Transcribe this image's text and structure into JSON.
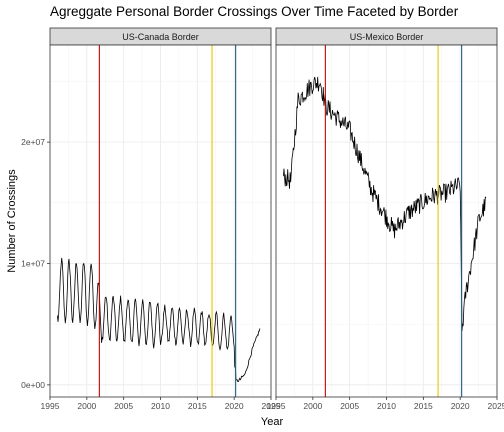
{
  "chart_data": {
    "type": "line",
    "title": "Agreggate Personal Border Crossings Over Time Faceted by Border",
    "xlabel": "Year",
    "ylabel": "Number of Crossings",
    "xlim": [
      1995,
      2025
    ],
    "ylim": [
      -1000000,
      28000000
    ],
    "x_ticks": [
      1995,
      2000,
      2005,
      2010,
      2015,
      2020,
      2025
    ],
    "x_tick_labels": [
      "1995",
      "2000",
      "2005",
      "2010",
      "2015",
      "2020",
      "2025"
    ],
    "y_ticks": [
      0,
      10000000,
      20000000
    ],
    "y_tick_labels": [
      "0e+00",
      "1e+07",
      "2e+07"
    ],
    "grid": true,
    "reference_lines": [
      {
        "x": 2001.7,
        "color": "#cc0000"
      },
      {
        "x": 2017.0,
        "color": "#e6c700"
      },
      {
        "x": 2020.2,
        "color": "#1b5f85"
      }
    ],
    "facets": [
      {
        "label": "US-Canada Border",
        "series": [
          {
            "x": [
              1996.0,
              2001.0,
              2001.75,
              2005.0,
              2010.0,
              2015.0,
              2020.0,
              2020.25,
              2020.75,
              2021.5,
              2022.5,
              2023.5
            ],
            "y": [
              7800000,
              7500000,
              5600000,
              5300000,
              5000000,
              4700000,
              4200000,
              300000,
              400000,
              900000,
              3000000,
              4600000
            ]
          }
        ]
      },
      {
        "label": "US-Mexico Border",
        "series": [
          {
            "x": [
              1996.0,
              1997.0,
              1998.0,
              2000.0,
              2001.0,
              2001.75,
              2002.5,
              2005.0,
              2008.0,
              2011.0,
              2013.0,
              2016.0,
              2018.0,
              2020.0,
              2020.25,
              2020.75,
              2021.5,
              2022.5,
              2023.5
            ],
            "y": [
              17200000,
              16800000,
              23500000,
              24800000,
              25000000,
              23000000,
              22500000,
              21000000,
              16000000,
              12700000,
              14200000,
              15500000,
              15800000,
              16500000,
              4500000,
              7500000,
              10000000,
              13500000,
              15000000
            ]
          }
        ]
      }
    ]
  }
}
